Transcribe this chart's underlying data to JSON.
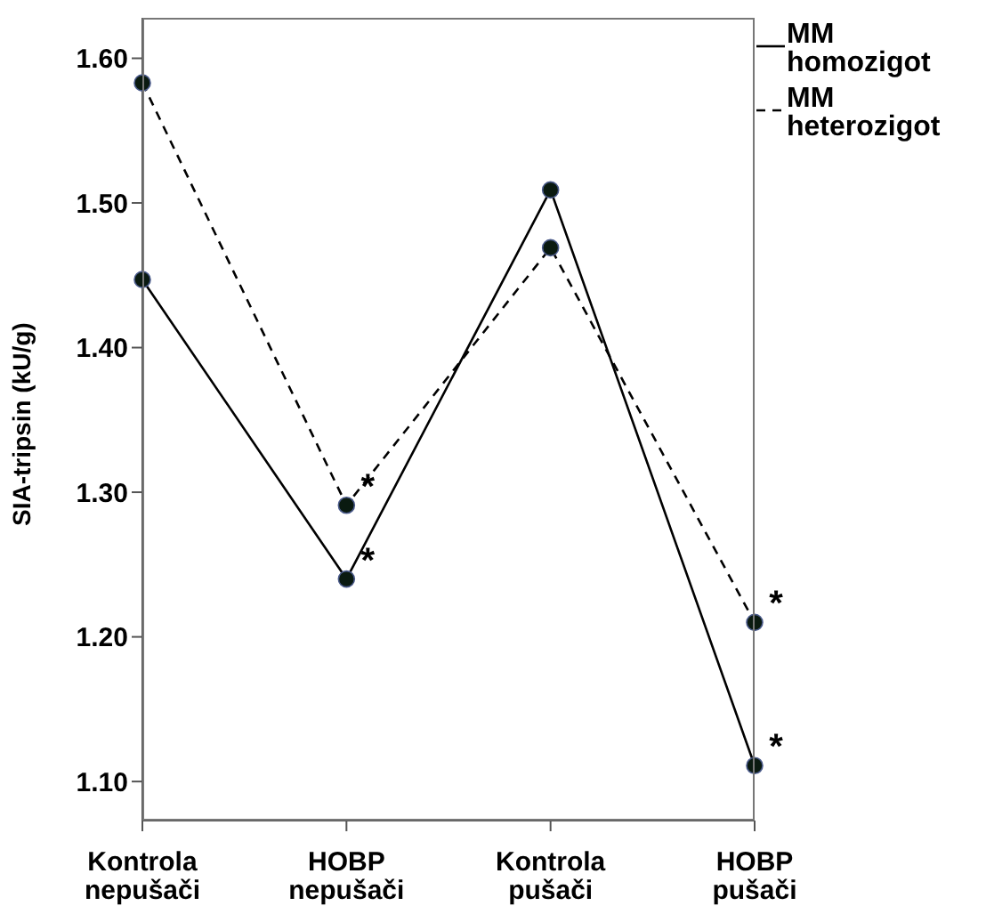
{
  "chart_data": {
    "type": "line",
    "ylabel": "SIA-tripsin (kU/g)",
    "categories": [
      "Kontrola nepušači",
      "HOBP nepušači",
      "Kontrola pušači",
      "HOBP pušači"
    ],
    "series": [
      {
        "name": "MM homozigot",
        "color": "#000000",
        "line_style": "solid",
        "values": [
          1.447,
          1.24,
          1.509,
          1.111
        ]
      },
      {
        "name": "MM heterozigot",
        "color": "#000000",
        "line_style": "dashed",
        "values": [
          1.583,
          1.291,
          1.469,
          1.21
        ]
      }
    ],
    "ylim": [
      1.073,
      1.628
    ],
    "yticks": [
      {
        "value": 1.1,
        "label": "1.10"
      },
      {
        "value": 1.2,
        "label": "1.20"
      },
      {
        "value": 1.3,
        "label": "1.30"
      },
      {
        "value": 1.4,
        "label": "1.40"
      },
      {
        "value": 1.5,
        "label": "1.50"
      },
      {
        "value": 1.6,
        "label": "1.60"
      }
    ],
    "annotations": [
      {
        "text": "*",
        "x": "HOBP nepušači",
        "y": 1.291
      },
      {
        "text": "*",
        "x": "HOBP nepušači",
        "y": 1.24
      },
      {
        "text": "*",
        "x": "HOBP pušači",
        "y": 1.21
      },
      {
        "text": "*",
        "x": "HOBP pušači",
        "y": 1.111
      }
    ],
    "marker": "circle",
    "legend": "top right",
    "grid": false
  }
}
